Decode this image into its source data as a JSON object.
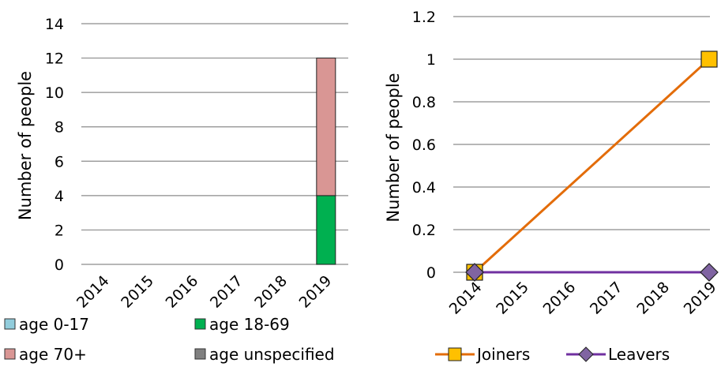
{
  "chart_data": [
    {
      "type": "bar",
      "stacked": true,
      "categories": [
        "2014",
        "2015",
        "2016",
        "2017",
        "2018",
        "2019"
      ],
      "series": [
        {
          "name": "age 0-17",
          "color": "#92cddc",
          "values": [
            0,
            0,
            0,
            0,
            0,
            0
          ]
        },
        {
          "name": "age 18-69",
          "color": "#00b050",
          "values": [
            0,
            0,
            0,
            0,
            0,
            4
          ]
        },
        {
          "name": "age 70+",
          "color": "#d99694",
          "values": [
            0,
            0,
            0,
            0,
            0,
            8
          ]
        },
        {
          "name": "age unspecified",
          "color": "#808080",
          "values": [
            0,
            0,
            0,
            0,
            0,
            0
          ]
        }
      ],
      "ylabel": "Number of people",
      "ylim": [
        0,
        14
      ],
      "yticks": [
        0,
        2,
        4,
        6,
        8,
        10,
        12,
        14
      ],
      "grid": true,
      "legend": "bottom"
    },
    {
      "type": "line",
      "x": [
        "2014",
        "2015",
        "2016",
        "2017",
        "2018",
        "2019"
      ],
      "series": [
        {
          "name": "Joiners",
          "color": "#e36c09",
          "marker_color": "#ffc000",
          "marker": "square",
          "points": [
            [
              "2014",
              0
            ],
            [
              "2019",
              1
            ]
          ]
        },
        {
          "name": "Leavers",
          "color": "#7030a0",
          "marker_color": "#8064a2",
          "marker": "diamond",
          "points": [
            [
              "2014",
              0
            ],
            [
              "2019",
              0
            ]
          ]
        }
      ],
      "ylabel": "Number of people",
      "ylim": [
        0,
        1.2
      ],
      "yticks": [
        "0",
        "0.2",
        "0.4",
        "0.6",
        "0.8",
        "1",
        "1.2"
      ],
      "grid": true,
      "legend": "bottom"
    }
  ]
}
